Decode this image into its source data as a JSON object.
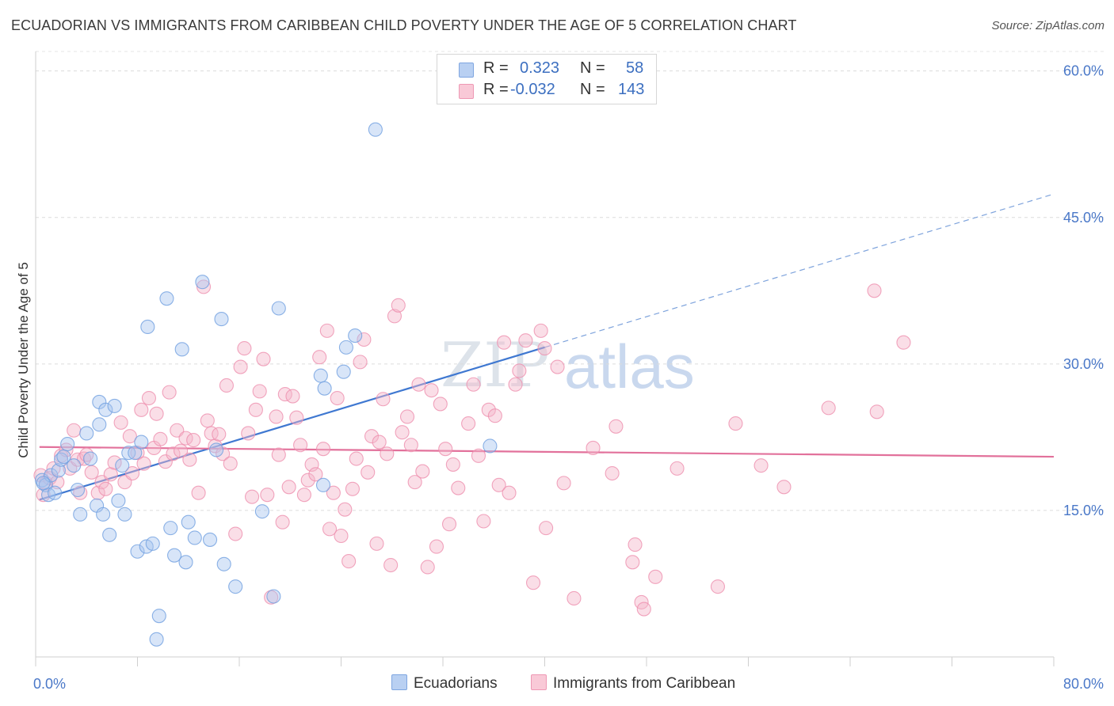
{
  "title": "ECUADORIAN VS IMMIGRANTS FROM CARIBBEAN CHILD POVERTY UNDER THE AGE OF 5 CORRELATION CHART",
  "source": "Source: ZipAtlas.com",
  "legend": {
    "rows": [
      {
        "r_label": "R =",
        "r_value": "0.323",
        "n_label": "N =",
        "n_value": "58",
        "color": "#a9c6ef"
      },
      {
        "r_label": "R =",
        "r_value": "-0.032",
        "n_label": "N =",
        "n_value": "143",
        "color": "#f5b6c9"
      }
    ]
  },
  "bottom_legend": [
    {
      "label": "Ecuadorians",
      "color": "#a9c6ef"
    },
    {
      "label": "Immigrants from Caribbean",
      "color": "#f5b6c9"
    }
  ],
  "watermark": {
    "zip": "ZIP",
    "atlas": "atlas"
  },
  "chart_data": {
    "type": "scatter",
    "ylabel": "Child Poverty Under the Age of 5",
    "x_tick_labels": [
      "0.0%",
      "80.0%"
    ],
    "y_tick_labels": [
      "15.0%",
      "30.0%",
      "45.0%",
      "60.0%"
    ],
    "y_ticks": [
      15,
      30,
      45,
      60
    ],
    "xlim": [
      0,
      80
    ],
    "ylim": [
      0,
      62
    ],
    "grid": true,
    "series": [
      {
        "name": "Ecuadorians",
        "color": "#6f9fe0",
        "fill": "#a9c6ef",
        "trend": {
          "x0": 0.3,
          "y0": 16.1,
          "x1": 40,
          "y1": 31.7,
          "dash_to_x": 80,
          "dash_to_y": 47.4
        },
        "points": [
          [
            0.5,
            18.1
          ],
          [
            0.8,
            17.6
          ],
          [
            1.0,
            16.6
          ],
          [
            1.2,
            18.6
          ],
          [
            1.5,
            16.8
          ],
          [
            1.8,
            19.1
          ],
          [
            2.0,
            20.2
          ],
          [
            2.2,
            20.5
          ],
          [
            2.5,
            21.8
          ],
          [
            3.0,
            19.6
          ],
          [
            3.3,
            17.1
          ],
          [
            3.5,
            14.6
          ],
          [
            4.0,
            22.9
          ],
          [
            4.3,
            20.3
          ],
          [
            4.8,
            15.5
          ],
          [
            5.0,
            23.8
          ],
          [
            5.0,
            26.1
          ],
          [
            5.3,
            14.6
          ],
          [
            5.5,
            25.3
          ],
          [
            5.8,
            12.5
          ],
          [
            6.2,
            25.7
          ],
          [
            6.5,
            16.0
          ],
          [
            6.8,
            19.6
          ],
          [
            7.0,
            14.6
          ],
          [
            7.3,
            20.9
          ],
          [
            7.8,
            20.9
          ],
          [
            8.0,
            10.8
          ],
          [
            8.3,
            22.0
          ],
          [
            8.7,
            11.3
          ],
          [
            8.8,
            33.8
          ],
          [
            9.2,
            11.6
          ],
          [
            9.7,
            4.2
          ],
          [
            9.5,
            1.8
          ],
          [
            10.3,
            36.7
          ],
          [
            10.6,
            13.2
          ],
          [
            10.9,
            10.4
          ],
          [
            11.5,
            31.5
          ],
          [
            11.8,
            9.7
          ],
          [
            12.0,
            13.8
          ],
          [
            12.5,
            12.2
          ],
          [
            13.1,
            38.4
          ],
          [
            13.7,
            12.0
          ],
          [
            14.2,
            21.2
          ],
          [
            14.6,
            34.6
          ],
          [
            14.8,
            9.5
          ],
          [
            15.7,
            7.2
          ],
          [
            17.8,
            14.9
          ],
          [
            18.7,
            6.2
          ],
          [
            19.1,
            35.7
          ],
          [
            22.6,
            17.6
          ],
          [
            22.4,
            28.8
          ],
          [
            22.7,
            27.5
          ],
          [
            24.2,
            29.2
          ],
          [
            24.4,
            31.7
          ],
          [
            25.1,
            32.9
          ],
          [
            26.7,
            54.0
          ],
          [
            35.7,
            21.6
          ],
          [
            0.6,
            17.8
          ]
        ]
      },
      {
        "name": "Immigrants from Caribbean",
        "color": "#ee8fae",
        "fill": "#f5b6c9",
        "trend": {
          "x0": 0.3,
          "y0": 21.5,
          "x1": 80,
          "y1": 20.5
        },
        "points": [
          [
            0.4,
            18.6
          ],
          [
            0.6,
            16.6
          ],
          [
            0.8,
            17.8
          ],
          [
            1.1,
            18.3
          ],
          [
            1.4,
            19.3
          ],
          [
            1.7,
            17.9
          ],
          [
            2.0,
            20.6
          ],
          [
            2.4,
            21.2
          ],
          [
            2.7,
            19.3
          ],
          [
            3.0,
            23.2
          ],
          [
            3.3,
            20.2
          ],
          [
            3.5,
            16.8
          ],
          [
            3.8,
            20.3
          ],
          [
            4.0,
            20.7
          ],
          [
            4.4,
            18.9
          ],
          [
            4.9,
            16.8
          ],
          [
            5.2,
            17.9
          ],
          [
            5.5,
            17.2
          ],
          [
            5.9,
            18.7
          ],
          [
            6.2,
            19.9
          ],
          [
            6.7,
            24.0
          ],
          [
            7.0,
            17.9
          ],
          [
            7.4,
            22.6
          ],
          [
            7.6,
            18.8
          ],
          [
            8.0,
            20.9
          ],
          [
            8.3,
            25.3
          ],
          [
            8.5,
            19.8
          ],
          [
            8.9,
            26.5
          ],
          [
            9.3,
            21.4
          ],
          [
            9.5,
            24.9
          ],
          [
            9.8,
            22.3
          ],
          [
            10.2,
            20.0
          ],
          [
            10.5,
            27.1
          ],
          [
            10.8,
            20.8
          ],
          [
            11.1,
            23.2
          ],
          [
            11.4,
            21.1
          ],
          [
            11.8,
            22.4
          ],
          [
            12.1,
            20.2
          ],
          [
            12.4,
            22.2
          ],
          [
            12.8,
            16.8
          ],
          [
            13.2,
            37.9
          ],
          [
            13.5,
            24.2
          ],
          [
            13.8,
            22.9
          ],
          [
            14.1,
            21.6
          ],
          [
            14.4,
            22.8
          ],
          [
            14.7,
            20.8
          ],
          [
            15.0,
            27.8
          ],
          [
            15.3,
            19.8
          ],
          [
            15.7,
            12.6
          ],
          [
            16.1,
            29.7
          ],
          [
            16.4,
            31.6
          ],
          [
            16.7,
            22.9
          ],
          [
            17.0,
            16.4
          ],
          [
            17.3,
            25.3
          ],
          [
            17.6,
            27.2
          ],
          [
            17.9,
            30.5
          ],
          [
            18.2,
            16.6
          ],
          [
            18.5,
            6.1
          ],
          [
            18.9,
            24.6
          ],
          [
            19.1,
            20.7
          ],
          [
            19.4,
            13.8
          ],
          [
            19.6,
            26.9
          ],
          [
            19.9,
            17.4
          ],
          [
            20.2,
            26.7
          ],
          [
            20.5,
            24.5
          ],
          [
            20.8,
            21.7
          ],
          [
            21.1,
            16.6
          ],
          [
            21.4,
            18.1
          ],
          [
            21.7,
            19.7
          ],
          [
            22.0,
            18.7
          ],
          [
            22.3,
            30.7
          ],
          [
            22.6,
            21.3
          ],
          [
            22.9,
            33.4
          ],
          [
            23.1,
            13.1
          ],
          [
            23.4,
            16.8
          ],
          [
            23.7,
            26.5
          ],
          [
            24.0,
            12.4
          ],
          [
            24.3,
            15.1
          ],
          [
            24.6,
            9.8
          ],
          [
            24.9,
            17.2
          ],
          [
            25.2,
            20.3
          ],
          [
            25.5,
            30.2
          ],
          [
            25.8,
            32.5
          ],
          [
            26.1,
            18.9
          ],
          [
            26.4,
            22.6
          ],
          [
            26.8,
            11.6
          ],
          [
            27.0,
            22.0
          ],
          [
            27.3,
            26.4
          ],
          [
            27.6,
            20.8
          ],
          [
            27.9,
            9.4
          ],
          [
            28.2,
            34.9
          ],
          [
            28.5,
            36.0
          ],
          [
            28.8,
            23.0
          ],
          [
            29.2,
            24.6
          ],
          [
            29.5,
            21.7
          ],
          [
            29.8,
            17.9
          ],
          [
            30.1,
            27.9
          ],
          [
            30.4,
            19.0
          ],
          [
            30.8,
            9.2
          ],
          [
            31.1,
            27.3
          ],
          [
            31.5,
            11.3
          ],
          [
            31.8,
            25.9
          ],
          [
            32.2,
            21.3
          ],
          [
            32.5,
            13.6
          ],
          [
            32.8,
            19.7
          ],
          [
            33.2,
            17.3
          ],
          [
            34.0,
            23.9
          ],
          [
            34.4,
            27.9
          ],
          [
            34.8,
            20.6
          ],
          [
            35.2,
            13.9
          ],
          [
            35.6,
            25.3
          ],
          [
            36.1,
            24.7
          ],
          [
            36.4,
            17.6
          ],
          [
            36.8,
            32.2
          ],
          [
            37.2,
            16.8
          ],
          [
            37.7,
            27.9
          ],
          [
            38.0,
            29.3
          ],
          [
            38.5,
            32.4
          ],
          [
            39.1,
            7.6
          ],
          [
            39.7,
            33.4
          ],
          [
            40.1,
            13.2
          ],
          [
            41.0,
            29.7
          ],
          [
            41.5,
            17.8
          ],
          [
            42.3,
            6.0
          ],
          [
            43.8,
            21.4
          ],
          [
            45.3,
            18.8
          ],
          [
            45.6,
            23.6
          ],
          [
            46.9,
            9.7
          ],
          [
            47.1,
            11.5
          ],
          [
            47.6,
            5.6
          ],
          [
            47.8,
            4.9
          ],
          [
            48.7,
            8.2
          ],
          [
            50.4,
            19.3
          ],
          [
            53.6,
            7.2
          ],
          [
            55.0,
            23.9
          ],
          [
            57.0,
            19.6
          ],
          [
            58.8,
            17.4
          ],
          [
            62.3,
            25.5
          ],
          [
            65.9,
            37.5
          ],
          [
            66.1,
            25.1
          ],
          [
            68.2,
            32.2
          ],
          [
            40.0,
            31.6
          ]
        ]
      }
    ]
  }
}
